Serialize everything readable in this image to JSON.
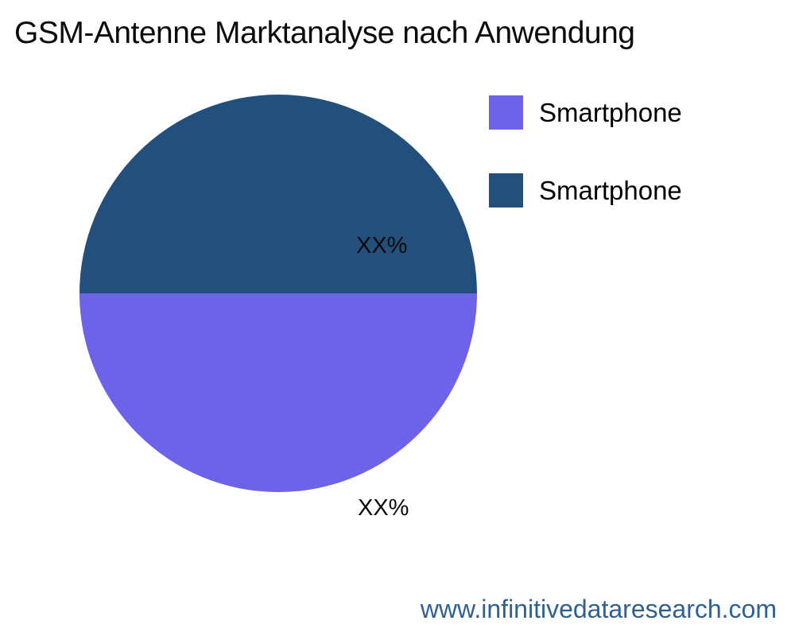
{
  "header": {
    "title": "GSM-Antenne Marktanalyse nach Anwendung"
  },
  "chart_data": {
    "type": "pie",
    "title": "GSM-Antenne Marktanalyse nach Anwendung",
    "legend_position": "right",
    "start_angle_deg": 90,
    "direction": "clockwise",
    "slices": [
      {
        "name": "Smartphone",
        "value": 50,
        "display_label": "XX%",
        "color": "#6D63E8"
      },
      {
        "name": "Smartphone",
        "value": 50,
        "display_label": "XX%",
        "color": "#234F7D"
      }
    ]
  },
  "footer": {
    "website": "www.infinitivedataresearch.com",
    "color": "#2E6191"
  }
}
